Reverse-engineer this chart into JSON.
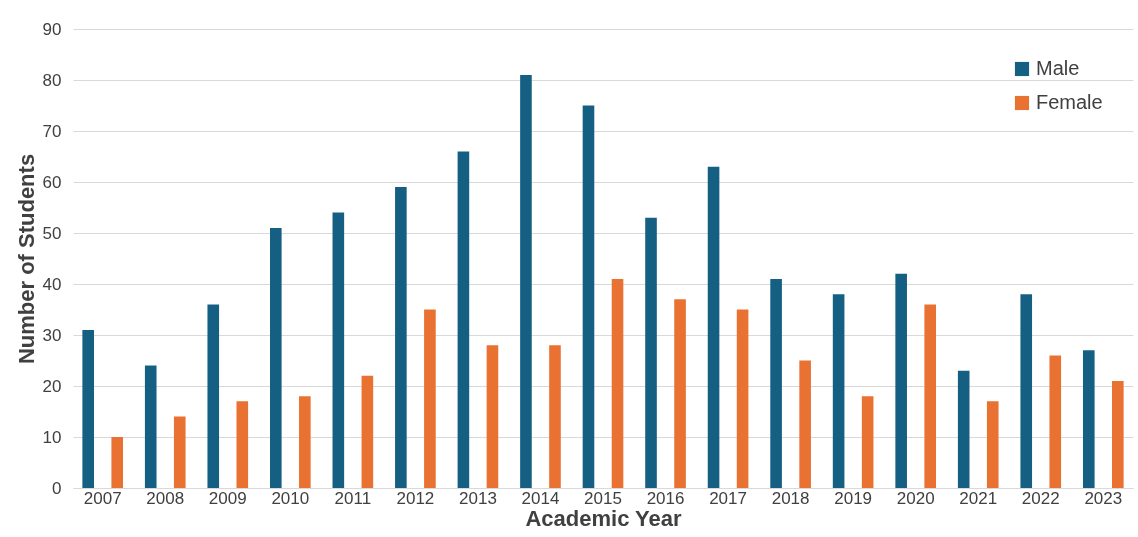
{
  "chart_data": {
    "type": "bar",
    "xlabel": "Academic Year",
    "ylabel": "Number of Students",
    "categories": [
      "2007",
      "2008",
      "2009",
      "2010",
      "2011",
      "2012",
      "2013",
      "2014",
      "2015",
      "2016",
      "2017",
      "2018",
      "2019",
      "2020",
      "2021",
      "2022",
      "2023"
    ],
    "series": [
      {
        "name": "Male",
        "color": "#156082",
        "values": [
          31,
          24,
          36,
          51,
          54,
          59,
          66,
          81,
          75,
          53,
          63,
          41,
          38,
          42,
          23,
          38,
          27
        ]
      },
      {
        "name": "Female",
        "color": "#e97132",
        "values": [
          10,
          14,
          17,
          18,
          22,
          35,
          28,
          28,
          41,
          37,
          35,
          25,
          18,
          36,
          17,
          26,
          21
        ]
      }
    ],
    "ylim": [
      0,
      90
    ],
    "yticks": [
      0,
      10,
      20,
      30,
      40,
      50,
      60,
      70,
      80,
      90
    ],
    "grid": "y",
    "legend": "top right"
  }
}
